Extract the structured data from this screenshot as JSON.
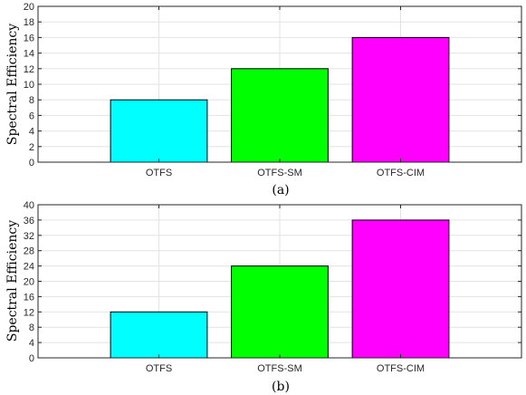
{
  "chart_data": [
    {
      "type": "bar",
      "categories": [
        "OTFS",
        "OTFS-SM",
        "OTFS-CIM"
      ],
      "values": [
        8,
        12,
        16
      ],
      "colors": [
        "#00ffff",
        "#00ff00",
        "#ff00ff"
      ],
      "ylabel": "Spectral Efficiency",
      "caption": "(a)",
      "ylim": [
        0,
        20
      ],
      "yticks": [
        0,
        2,
        4,
        6,
        8,
        10,
        12,
        14,
        16,
        18,
        20
      ],
      "grid": true
    },
    {
      "type": "bar",
      "categories": [
        "OTFS",
        "OTFS-SM",
        "OTFS-CIM"
      ],
      "values": [
        12,
        24,
        36
      ],
      "colors": [
        "#00ffff",
        "#00ff00",
        "#ff00ff"
      ],
      "ylabel": "Spectral Efficiency",
      "caption": "(b)",
      "ylim": [
        0,
        40
      ],
      "yticks": [
        0,
        4,
        8,
        12,
        16,
        20,
        24,
        28,
        32,
        36,
        40
      ],
      "grid": true
    }
  ]
}
